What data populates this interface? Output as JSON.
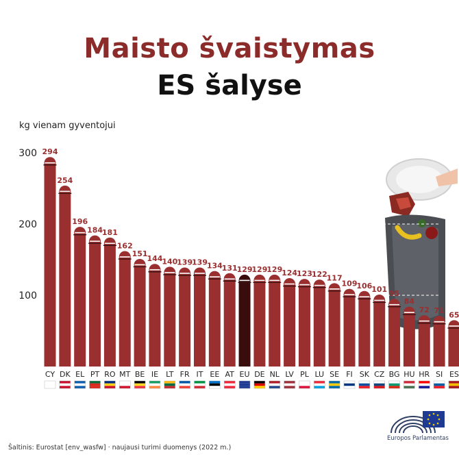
{
  "header": {
    "title_line1": "Maisto švaistymas",
    "title_line2": "ES šalyse"
  },
  "source": "Šaltinis: Eurostat [env_wasfw] · naujausi turimi duomenys (2022 m.)",
  "logo_text": "Europos Parlamentas",
  "colors": {
    "bar": "#9a2f30",
    "highlight": "#3a0d0d",
    "title": "#8b2c2b"
  },
  "chart_data": {
    "type": "bar",
    "ylabel": "kg vienam gyventojui",
    "ylim": [
      0,
      300
    ],
    "yticks": [
      100,
      200,
      300
    ],
    "highlight": "EU",
    "categories": [
      "CY",
      "DK",
      "EL",
      "PT",
      "RO",
      "MT",
      "BE",
      "IE",
      "LT",
      "FR",
      "IT",
      "EE",
      "AT",
      "EU",
      "DE",
      "NL",
      "LV",
      "PL",
      "LU",
      "SE",
      "FI",
      "SK",
      "CZ",
      "BG",
      "HU",
      "HR",
      "SI",
      "ES"
    ],
    "values": [
      294,
      254,
      196,
      184,
      181,
      162,
      151,
      144,
      140,
      139,
      139,
      134,
      131,
      129,
      129,
      129,
      124,
      123,
      122,
      117,
      109,
      106,
      101,
      95,
      84,
      72,
      71,
      65
    ]
  }
}
